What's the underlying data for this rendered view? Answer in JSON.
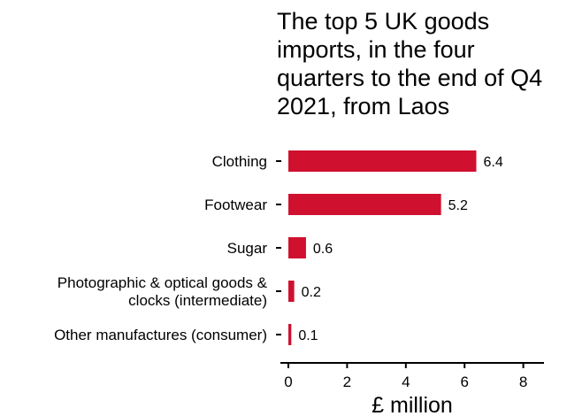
{
  "chart_data": {
    "type": "bar",
    "orientation": "horizontal",
    "title": "The top 5 UK goods imports, in the four quarters to the end of Q4 2021, from Laos",
    "categories": [
      [
        "Clothing"
      ],
      [
        "Footwear"
      ],
      [
        "Sugar"
      ],
      [
        "Photographic & optical goods &",
        "clocks (intermediate)"
      ],
      [
        "Other manufactures (consumer)"
      ]
    ],
    "values": [
      6.4,
      5.2,
      0.6,
      0.2,
      0.1
    ],
    "value_labels": [
      "6.4",
      "5.2",
      "0.6",
      "0.2",
      "0.1"
    ],
    "xlabel": "£ million",
    "ylabel": "",
    "xlim": [
      0,
      8
    ],
    "xticks": [
      "0",
      "2",
      "4",
      "6",
      "8"
    ],
    "bar_color": "#d0102f",
    "grid": false,
    "legend": "none"
  }
}
